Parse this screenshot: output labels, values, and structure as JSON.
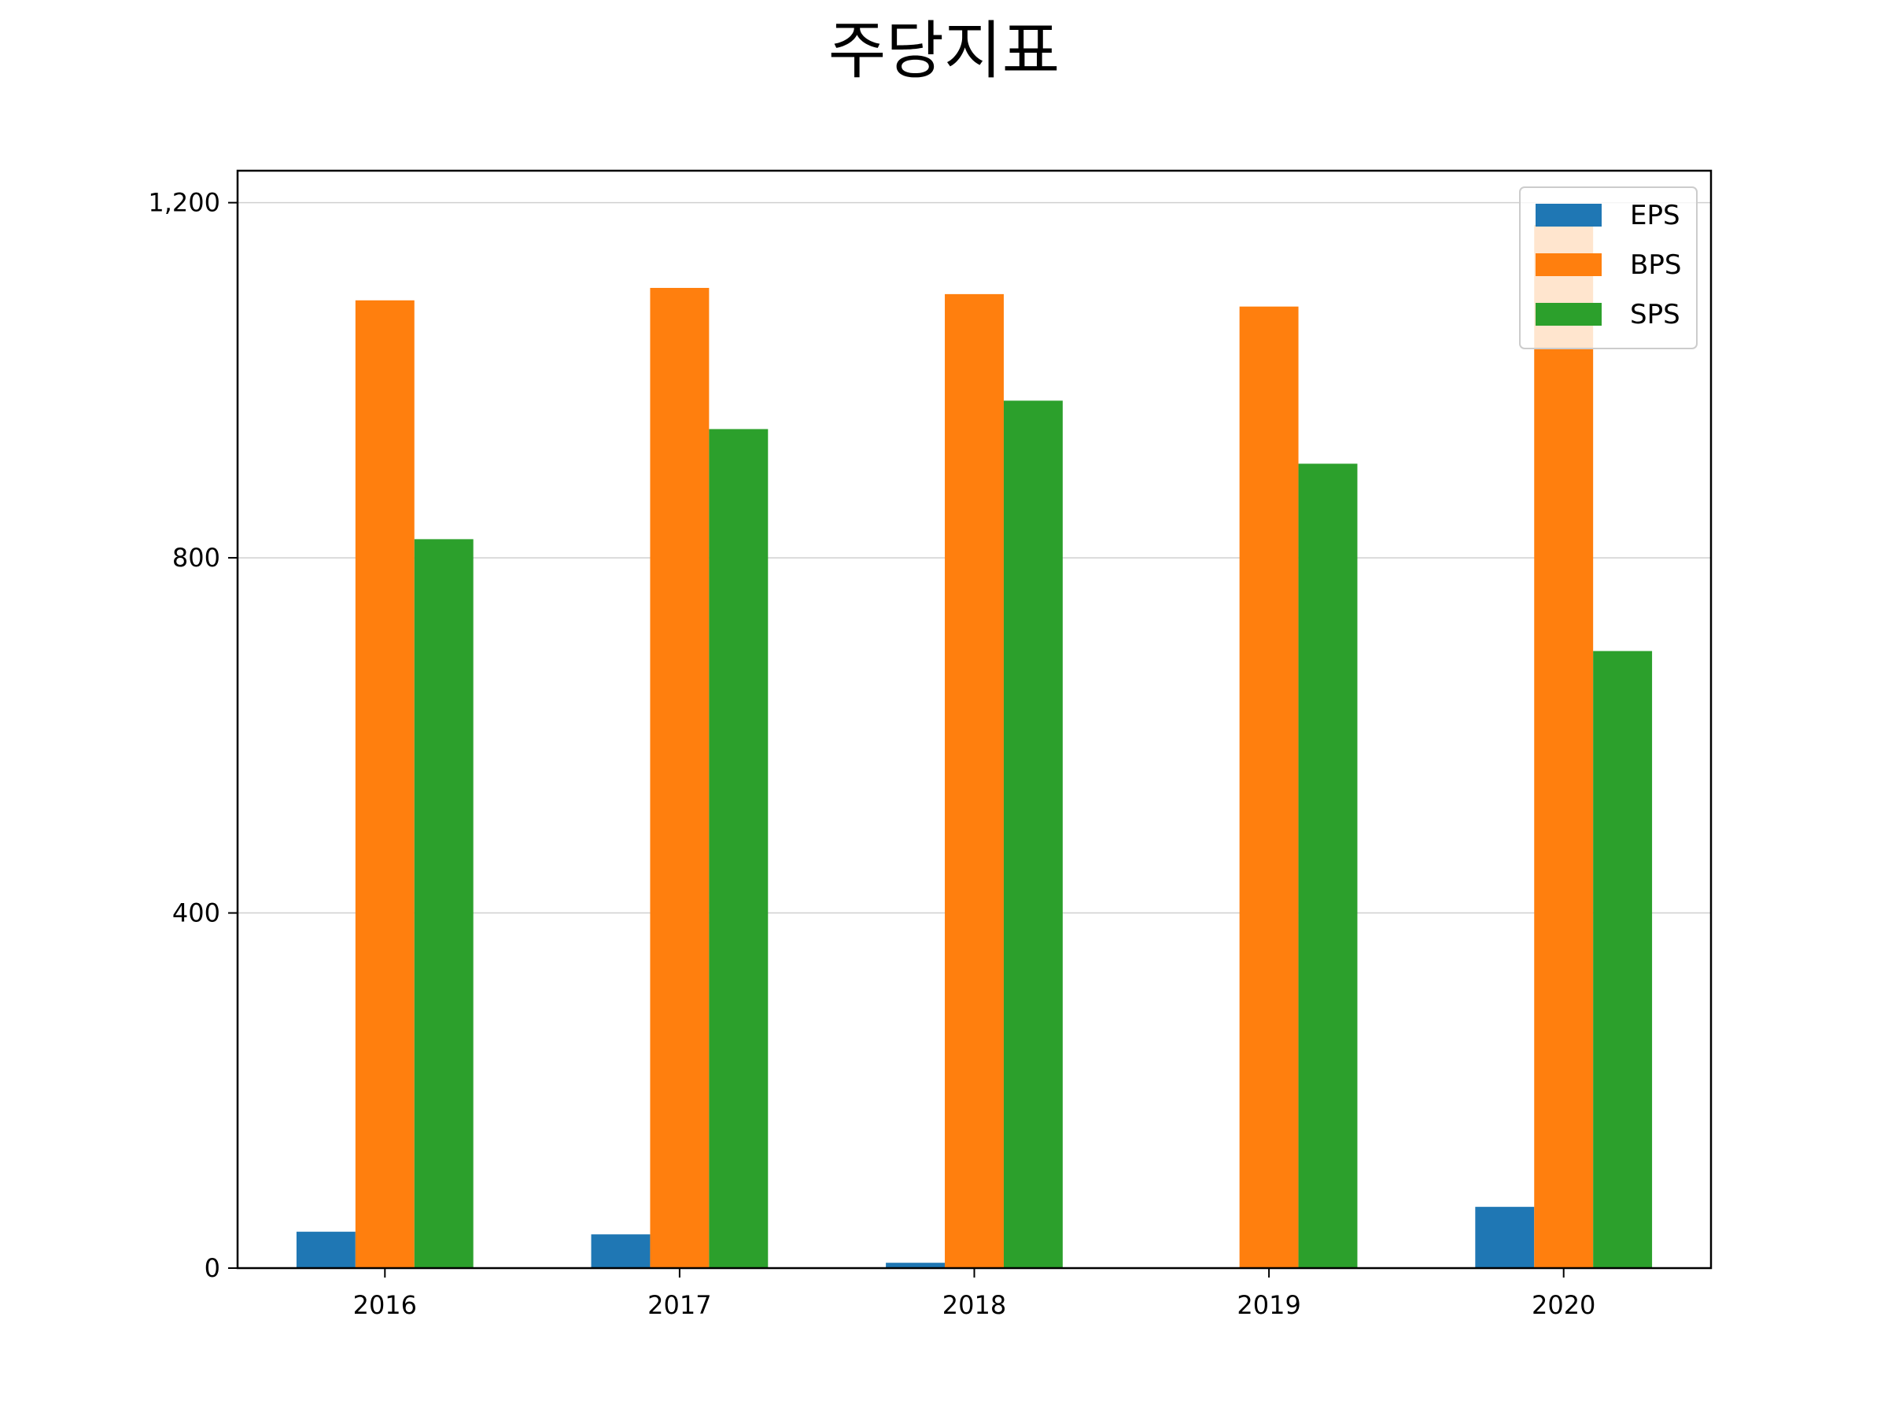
{
  "chart_data": {
    "type": "bar",
    "title": "주당지표",
    "xlabel": "",
    "ylabel": "",
    "categories": [
      "2016",
      "2017",
      "2018",
      "2019",
      "2020"
    ],
    "series": [
      {
        "name": "EPS",
        "color": "#1f77b4",
        "values": [
          41,
          38,
          6,
          0,
          69
        ]
      },
      {
        "name": "BPS",
        "color": "#ff7f0e",
        "values": [
          1090,
          1104,
          1097,
          1083,
          1175
        ]
      },
      {
        "name": "SPS",
        "color": "#2ca02c",
        "values": [
          821,
          945,
          977,
          906,
          695
        ]
      }
    ],
    "ylim": [
      0,
      1236
    ],
    "yticks": [
      0,
      400,
      800,
      1200
    ],
    "ytick_labels": [
      "0",
      "400",
      "800",
      "1,200"
    ],
    "grid": "y",
    "legend_position": "top-right"
  }
}
